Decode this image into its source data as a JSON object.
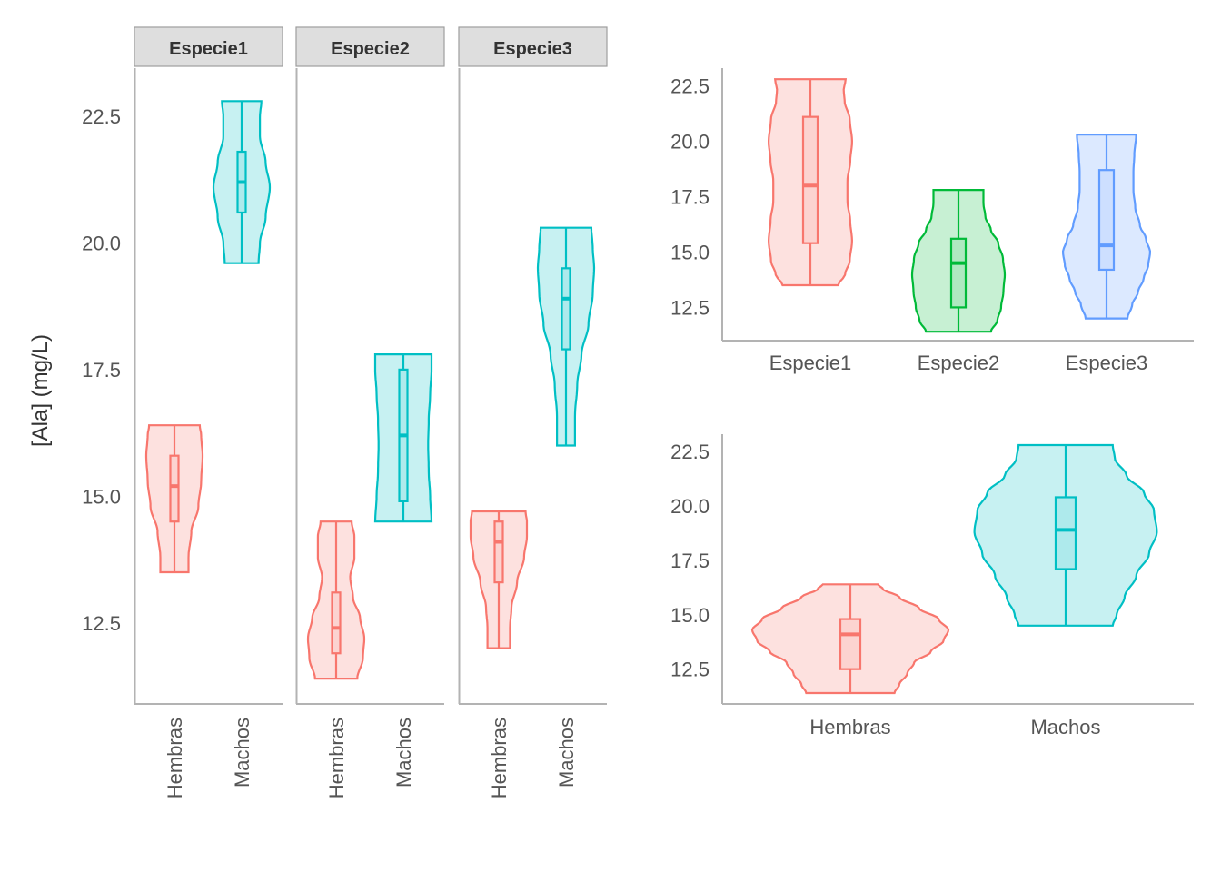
{
  "colors": {
    "Hembras": "#F8766D",
    "Machos": "#00BFC4",
    "Especie1": "#F8766D",
    "Especie2": "#00BA38",
    "Especie3": "#619CFF"
  },
  "chart_data": [
    {
      "type": "violin",
      "title": "",
      "ylabel": "[Ala] (mg/L)",
      "xlabel": "",
      "facet_labels": [
        "Especie1",
        "Especie2",
        "Especie3"
      ],
      "x_tick_labels": [
        "Hembras",
        "Machos"
      ],
      "y_ticks": [
        "12.5",
        "15.0",
        "17.5",
        "20.0",
        "22.5"
      ],
      "ylim": [
        10.9,
        23.45
      ],
      "facets": [
        {
          "name": "Especie1",
          "groups": [
            {
              "name": "Hembras",
              "min": 13.5,
              "q1": 14.5,
              "median": 15.2,
              "q3": 15.8,
              "max": 16.4,
              "density": [
                [
                  13.5,
                  0.5
                ],
                [
                  13.8,
                  0.5
                ],
                [
                  14.3,
                  0.6
                ],
                [
                  14.8,
                  0.85
                ],
                [
                  15.3,
                  0.95
                ],
                [
                  15.8,
                  1.0
                ],
                [
                  16.2,
                  0.95
                ],
                [
                  16.4,
                  0.9
                ]
              ]
            },
            {
              "name": "Machos",
              "min": 19.6,
              "q1": 20.6,
              "median": 21.2,
              "q3": 21.8,
              "max": 22.8,
              "density": [
                [
                  19.6,
                  0.6
                ],
                [
                  20.0,
                  0.65
                ],
                [
                  20.5,
                  0.85
                ],
                [
                  21.1,
                  1.0
                ],
                [
                  21.6,
                  0.85
                ],
                [
                  22.1,
                  0.65
                ],
                [
                  22.5,
                  0.65
                ],
                [
                  22.8,
                  0.7
                ]
              ]
            }
          ]
        },
        {
          "name": "Especie2",
          "groups": [
            {
              "name": "Hembras",
              "min": 11.4,
              "q1": 11.9,
              "median": 12.4,
              "q3": 13.1,
              "max": 14.5,
              "density": [
                [
                  11.4,
                  0.75
                ],
                [
                  11.8,
                  0.95
                ],
                [
                  12.2,
                  1.0
                ],
                [
                  12.6,
                  0.85
                ],
                [
                  13.0,
                  0.6
                ],
                [
                  13.4,
                  0.5
                ],
                [
                  13.8,
                  0.65
                ],
                [
                  14.2,
                  0.65
                ],
                [
                  14.5,
                  0.55
                ]
              ]
            },
            {
              "name": "Machos",
              "min": 14.5,
              "q1": 14.9,
              "median": 16.2,
              "q3": 17.5,
              "max": 17.8,
              "density": [
                [
                  14.5,
                  1.0
                ],
                [
                  15.0,
                  0.95
                ],
                [
                  15.5,
                  0.9
                ],
                [
                  16.0,
                  0.88
                ],
                [
                  16.5,
                  0.9
                ],
                [
                  17.0,
                  0.95
                ],
                [
                  17.5,
                  1.0
                ],
                [
                  17.8,
                  1.0
                ]
              ]
            }
          ]
        },
        {
          "name": "Especie3",
          "groups": [
            {
              "name": "Hembras",
              "min": 12.0,
              "q1": 13.3,
              "median": 14.1,
              "q3": 14.5,
              "max": 14.7,
              "density": [
                [
                  12.0,
                  0.4
                ],
                [
                  12.4,
                  0.4
                ],
                [
                  12.8,
                  0.45
                ],
                [
                  13.3,
                  0.65
                ],
                [
                  13.8,
                  0.9
                ],
                [
                  14.2,
                  1.0
                ],
                [
                  14.5,
                  1.0
                ],
                [
                  14.7,
                  0.95
                ]
              ]
            },
            {
              "name": "Machos",
              "min": 16.0,
              "q1": 17.9,
              "median": 18.9,
              "q3": 19.5,
              "max": 20.3,
              "density": [
                [
                  16.0,
                  0.32
                ],
                [
                  16.6,
                  0.32
                ],
                [
                  17.2,
                  0.4
                ],
                [
                  17.8,
                  0.55
                ],
                [
                  18.4,
                  0.8
                ],
                [
                  19.0,
                  0.95
                ],
                [
                  19.5,
                  1.0
                ],
                [
                  19.9,
                  0.95
                ],
                [
                  20.3,
                  0.9
                ]
              ]
            }
          ]
        }
      ]
    },
    {
      "type": "violin",
      "title": "",
      "xlabel": "",
      "ylabel": "",
      "categories": [
        "Especie1",
        "Especie2",
        "Especie3"
      ],
      "y_ticks": [
        "12.5",
        "15.0",
        "17.5",
        "20.0",
        "22.5"
      ],
      "ylim": [
        11.0,
        23.3
      ],
      "groups": [
        {
          "name": "Especie1",
          "min": 13.5,
          "q1": 15.4,
          "median": 18.0,
          "q3": 21.1,
          "max": 22.8,
          "density": [
            [
              13.5,
              0.6
            ],
            [
              14.0,
              0.75
            ],
            [
              14.6,
              0.85
            ],
            [
              15.5,
              0.9
            ],
            [
              16.4,
              0.86
            ],
            [
              17.3,
              0.8
            ],
            [
              18.2,
              0.8
            ],
            [
              19.1,
              0.86
            ],
            [
              20.0,
              0.9
            ],
            [
              21.0,
              0.85
            ],
            [
              21.8,
              0.74
            ],
            [
              22.3,
              0.72
            ],
            [
              22.8,
              0.76
            ]
          ]
        },
        {
          "name": "Especie2",
          "min": 11.4,
          "q1": 12.5,
          "median": 14.5,
          "q3": 15.6,
          "max": 17.8,
          "density": [
            [
              11.4,
              0.7
            ],
            [
              11.9,
              0.84
            ],
            [
              12.5,
              0.92
            ],
            [
              13.2,
              0.97
            ],
            [
              14.0,
              1.0
            ],
            [
              14.7,
              0.96
            ],
            [
              15.4,
              0.86
            ],
            [
              16.0,
              0.7
            ],
            [
              16.6,
              0.58
            ],
            [
              17.2,
              0.54
            ],
            [
              17.8,
              0.54
            ]
          ]
        },
        {
          "name": "Especie3",
          "min": 12.0,
          "q1": 14.2,
          "median": 15.3,
          "q3": 18.7,
          "max": 20.3,
          "density": [
            [
              12.0,
              0.45
            ],
            [
              12.6,
              0.55
            ],
            [
              13.2,
              0.68
            ],
            [
              13.8,
              0.8
            ],
            [
              14.4,
              0.9
            ],
            [
              15.0,
              0.94
            ],
            [
              15.6,
              0.85
            ],
            [
              16.2,
              0.72
            ],
            [
              17.0,
              0.62
            ],
            [
              17.8,
              0.58
            ],
            [
              18.6,
              0.58
            ],
            [
              19.4,
              0.6
            ],
            [
              20.3,
              0.64
            ]
          ]
        }
      ]
    },
    {
      "type": "violin",
      "title": "",
      "xlabel": "",
      "ylabel": "",
      "categories": [
        "Hembras",
        "Machos"
      ],
      "y_ticks": [
        "12.5",
        "15.0",
        "17.5",
        "20.0",
        "22.5"
      ],
      "ylim": [
        10.9,
        23.3
      ],
      "groups": [
        {
          "name": "Hembras",
          "min": 11.4,
          "q1": 12.5,
          "median": 14.1,
          "q3": 14.8,
          "max": 16.4,
          "density": [
            [
              11.4,
              0.45
            ],
            [
              11.8,
              0.5
            ],
            [
              12.3,
              0.58
            ],
            [
              12.8,
              0.65
            ],
            [
              13.3,
              0.82
            ],
            [
              13.8,
              0.95
            ],
            [
              14.3,
              1.0
            ],
            [
              14.8,
              0.9
            ],
            [
              15.3,
              0.7
            ],
            [
              15.8,
              0.5
            ],
            [
              16.2,
              0.33
            ],
            [
              16.4,
              0.28
            ]
          ]
        },
        {
          "name": "Machos",
          "min": 14.5,
          "q1": 17.1,
          "median": 18.9,
          "q3": 20.4,
          "max": 22.8,
          "density": [
            [
              14.5,
              0.48
            ],
            [
              15.0,
              0.52
            ],
            [
              15.8,
              0.6
            ],
            [
              16.8,
              0.72
            ],
            [
              17.8,
              0.85
            ],
            [
              18.8,
              0.93
            ],
            [
              19.8,
              0.9
            ],
            [
              20.6,
              0.8
            ],
            [
              21.4,
              0.62
            ],
            [
              22.2,
              0.5
            ],
            [
              22.8,
              0.48
            ]
          ]
        }
      ]
    }
  ]
}
